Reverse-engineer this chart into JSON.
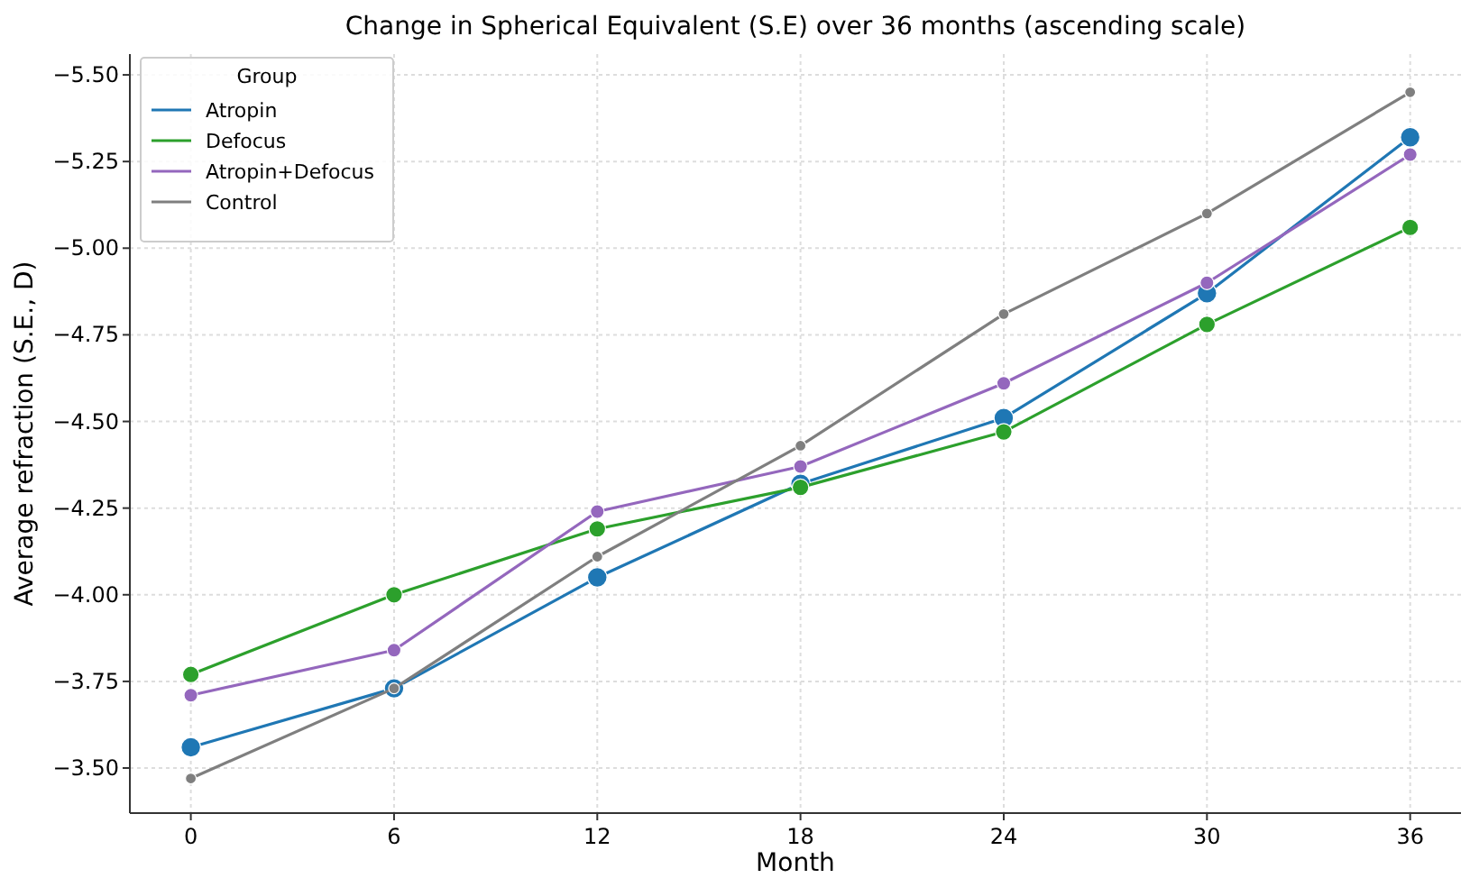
{
  "chart_data": {
    "type": "line",
    "title": "Change in Spherical Equivalent (S.E) over 36 months (ascending scale)",
    "xlabel": "Month",
    "ylabel": "Average refraction (S.E., D)",
    "legend_title": "Group",
    "x": [
      0,
      6,
      12,
      18,
      24,
      30,
      36
    ],
    "series": [
      {
        "name": "Atropin",
        "color": "#1f77b4",
        "values": [
          -3.56,
          -3.73,
          -4.05,
          -4.32,
          -4.51,
          -4.87,
          -5.32
        ]
      },
      {
        "name": "Defocus",
        "color": "#2ca02c",
        "values": [
          -3.77,
          -4.0,
          -4.19,
          -4.31,
          -4.47,
          -4.78,
          -5.06
        ]
      },
      {
        "name": "Atropin+Defocus",
        "color": "#9467bd",
        "values": [
          -3.71,
          -3.84,
          -4.24,
          -4.37,
          -4.61,
          -4.9,
          -5.27
        ]
      },
      {
        "name": "Control",
        "color": "#7f7f7f",
        "values": [
          -3.47,
          -3.73,
          -4.11,
          -4.43,
          -4.81,
          -5.1,
          -5.45
        ]
      }
    ],
    "xlim": [
      -1.8,
      37.5
    ],
    "xticks": [
      0,
      6,
      12,
      18,
      24,
      30,
      36
    ],
    "ylim": [
      -3.37,
      -5.56
    ],
    "yticks": [
      {
        "value": -3.5,
        "label": "−3.50"
      },
      {
        "value": -3.75,
        "label": "−3.75"
      },
      {
        "value": -4.0,
        "label": "−4.00"
      },
      {
        "value": -4.25,
        "label": "−4.25"
      },
      {
        "value": -4.5,
        "label": "−4.50"
      },
      {
        "value": -4.75,
        "label": "−4.75"
      },
      {
        "value": -5.0,
        "label": "−5.00"
      },
      {
        "value": -5.25,
        "label": "−5.25"
      },
      {
        "value": -5.5,
        "label": "−5.50"
      }
    ],
    "grid": true,
    "legend": "top left",
    "marker": "circle",
    "line_style": "solid"
  }
}
